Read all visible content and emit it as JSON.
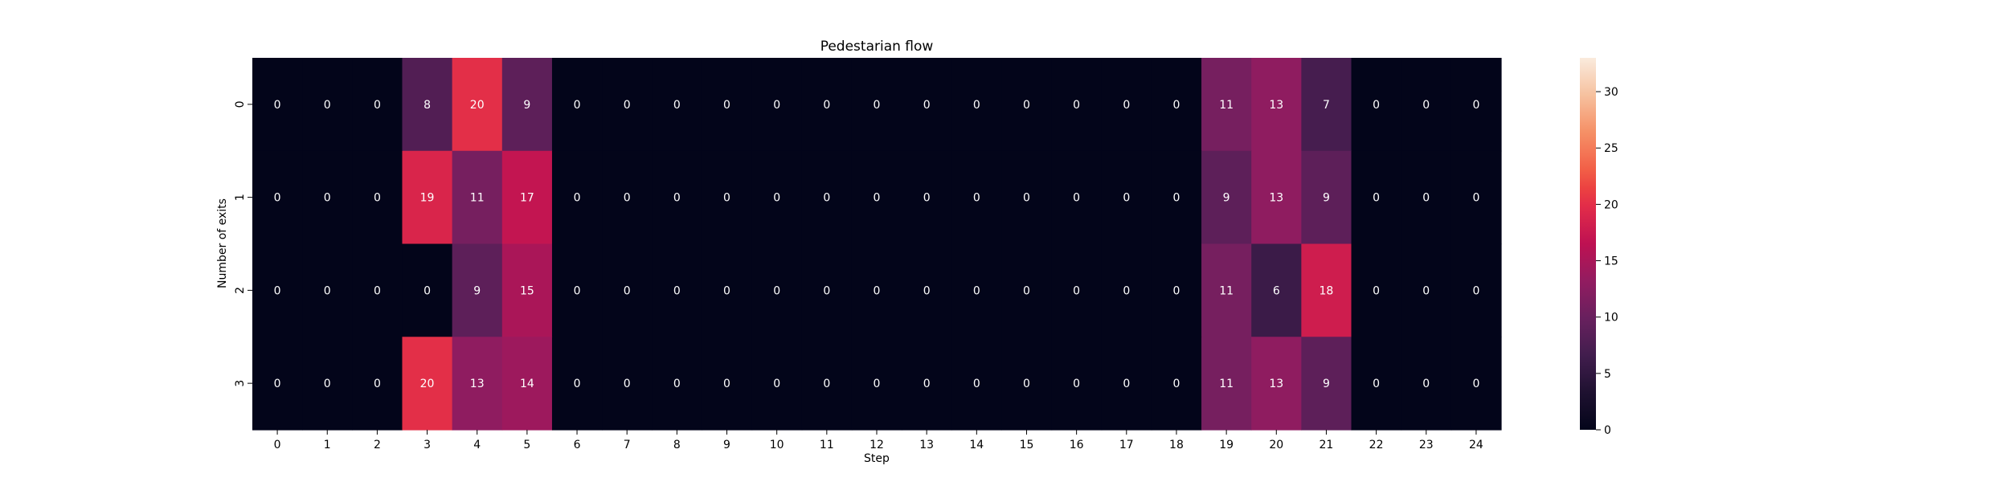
{
  "chart_data": {
    "type": "heatmap",
    "title": "Pedestarian flow",
    "xlabel": "Step",
    "ylabel": "Number of exits",
    "x_categories": [
      "0",
      "1",
      "2",
      "3",
      "4",
      "5",
      "6",
      "7",
      "8",
      "9",
      "10",
      "11",
      "12",
      "13",
      "14",
      "15",
      "16",
      "17",
      "18",
      "19",
      "20",
      "21",
      "22",
      "23",
      "24"
    ],
    "y_categories": [
      "0",
      "1",
      "2",
      "3"
    ],
    "values": [
      [
        0,
        0,
        0,
        8,
        20,
        9,
        0,
        0,
        0,
        0,
        0,
        0,
        0,
        0,
        0,
        0,
        0,
        0,
        0,
        11,
        13,
        7,
        0,
        0,
        0
      ],
      [
        0,
        0,
        0,
        19,
        11,
        17,
        0,
        0,
        0,
        0,
        0,
        0,
        0,
        0,
        0,
        0,
        0,
        0,
        0,
        9,
        13,
        9,
        0,
        0,
        0
      ],
      [
        0,
        0,
        0,
        0,
        9,
        15,
        0,
        0,
        0,
        0,
        0,
        0,
        0,
        0,
        0,
        0,
        0,
        0,
        0,
        11,
        6,
        18,
        0,
        0,
        0
      ],
      [
        0,
        0,
        0,
        20,
        13,
        14,
        0,
        0,
        0,
        0,
        0,
        0,
        0,
        0,
        0,
        0,
        0,
        0,
        0,
        11,
        13,
        9,
        0,
        0,
        0
      ]
    ],
    "annotated": true,
    "colormap": "rocket",
    "vmin": 0,
    "vmax": 33,
    "colorbar": {
      "ticks": [
        "0",
        "5",
        "10",
        "15",
        "20",
        "25",
        "30"
      ],
      "placement": "right"
    },
    "grid": false
  }
}
